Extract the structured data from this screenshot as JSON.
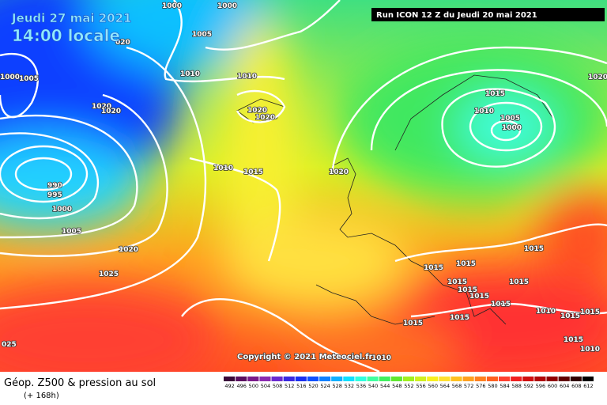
{
  "header": {
    "date": "Jeudi 27 mai 2021",
    "time": "14:00 locale",
    "run": "Run ICON 12 Z du Jeudi 20 mai 2021"
  },
  "copyright": "Copyright © 2021 Meteociel.fr",
  "footer": {
    "title": "Géop. Z500 & pression au sol",
    "lead": "(+ 168h)"
  },
  "isobar_labels": [
    "1000",
    "1000",
    "1005",
    "020",
    "1000",
    "1005",
    "1010",
    "1010",
    "1020",
    "1020",
    "1020",
    "1020",
    "1010",
    "1015",
    "990",
    "995",
    "1000",
    "1005",
    "1020",
    "1025",
    "025",
    "1020",
    "1015",
    "1010",
    "1005",
    "1000",
    "1020",
    "1015",
    "1015",
    "1015",
    "1015",
    "1015",
    "1015",
    "1015",
    "1015",
    "1015",
    "1015",
    "1010",
    "1015",
    "1015",
    "1015",
    "1010",
    "1010"
  ],
  "legend": {
    "values": [
      492,
      496,
      500,
      504,
      508,
      512,
      516,
      520,
      524,
      528,
      532,
      536,
      540,
      544,
      548,
      552,
      556,
      560,
      564,
      568,
      572,
      576,
      580,
      584,
      588,
      592,
      596,
      600,
      604,
      608,
      612
    ],
    "colors": [
      "#3a0a3a",
      "#5a1060",
      "#7a1a8a",
      "#8a2ab0",
      "#6a2ad0",
      "#3a2ae0",
      "#1a30f0",
      "#1050ff",
      "#1080ff",
      "#10b0ff",
      "#10e0ff",
      "#30ffe0",
      "#40ffa0",
      "#40f060",
      "#60e830",
      "#a0f020",
      "#d0f020",
      "#f8f020",
      "#ffe030",
      "#ffc020",
      "#ffa020",
      "#ff8020",
      "#ff6020",
      "#ff4030",
      "#f02020",
      "#d01010",
      "#b00808",
      "#900000",
      "#600000",
      "#300000",
      "#000000"
    ]
  }
}
